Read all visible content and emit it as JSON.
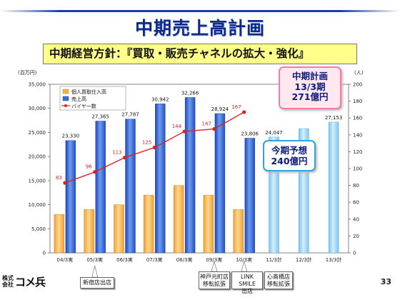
{
  "slide": {
    "title": "中期売上高計画",
    "subtitle": "中期経営方針：『買取・販売チャネルの拡大・強化』",
    "page_number": "33",
    "logo_small": "株式会社",
    "logo_text": "コメ兵"
  },
  "callouts": {
    "plan_line1": "中期計画",
    "plan_line2": "13/3期",
    "plan_line3": "271億円",
    "forecast_line1": "今期予想",
    "forecast_line2": "240億円"
  },
  "notes": {
    "shinjuku": "新宿店出店",
    "kobe_line1": "神戸元町店",
    "kobe_line2": "移転拡張",
    "linksmile_line1": "LINK SMILE",
    "linksmile_line2": "出店",
    "shinsaibashi_line1": "心斎橋店",
    "shinsaibashi_line2": "移転拡張"
  },
  "chart_data": {
    "type": "bar",
    "categories": [
      "04/3実",
      "05/3実",
      "06/3実",
      "07/3実",
      "08/3実",
      "09/3実",
      "10/3実",
      "11/3計",
      "12/3計",
      "13/3計"
    ],
    "y_left_label": "(百万円)",
    "y_right_label": "(人)",
    "y_left_lim": [
      0,
      35000
    ],
    "y_left_ticks": [
      "0",
      "5,000",
      "10,000",
      "15,000",
      "20,000",
      "25,000",
      "30,000",
      "35,000"
    ],
    "y_right_lim": [
      0,
      200
    ],
    "y_right_ticks": [
      "0",
      "20",
      "40",
      "60",
      "80",
      "100",
      "120",
      "140",
      "160",
      "180",
      "200"
    ],
    "legend_position": "top-left",
    "series": [
      {
        "name": "個人買取仕入高",
        "type": "bar",
        "color": "#f5b042",
        "values": [
          8000,
          9000,
          10000,
          12000,
          14000,
          12000,
          9000,
          null,
          null,
          null
        ]
      },
      {
        "name": "売上高",
        "type": "bar",
        "color": "#3a6fd8",
        "values": [
          23330,
          27365,
          27787,
          30942,
          32266,
          28924,
          23806,
          24047,
          25800,
          27153
        ],
        "labels": [
          "23,330",
          "27,365",
          "27,787",
          "30,942",
          "32,266",
          "28,924",
          "23,806",
          "24,047",
          "",
          "27,153"
        ],
        "plan_color": "#8fd0f5"
      },
      {
        "name": "バイヤー数",
        "type": "line",
        "axis": "right",
        "color": "#e02020",
        "values": [
          83,
          96,
          113,
          125,
          144,
          147,
          167,
          null,
          null,
          null
        ],
        "labels": [
          "83",
          "96",
          "113",
          "125",
          "144",
          "147",
          "167",
          "",
          "",
          ""
        ]
      }
    ]
  }
}
